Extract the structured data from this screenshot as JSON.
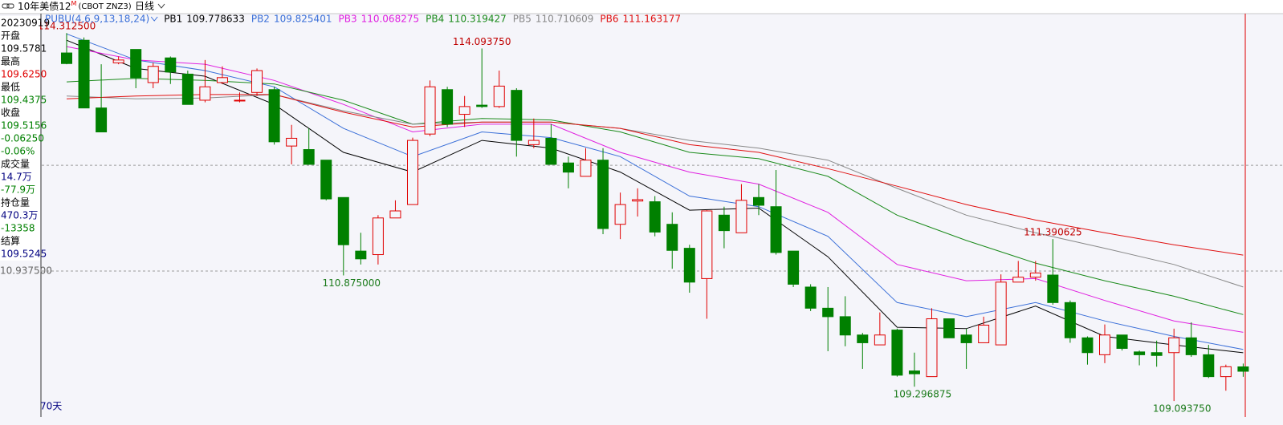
{
  "toolbar": {
    "symbol": "10年美债12",
    "symbol_sup": "M",
    "exchange": "(CBOT ZNZ3)",
    "period": "日线"
  },
  "info_panel": {
    "date": "20230919",
    "rows": [
      {
        "label": "开盘",
        "value": "109.5781",
        "color": "#000000"
      },
      {
        "label": "最高",
        "value": "109.6250",
        "color": "#e00000"
      },
      {
        "label": "最低",
        "value": "109.4375",
        "color": "#008000"
      },
      {
        "label": "收盘",
        "value": "109.5156",
        "color": "#008000"
      },
      {
        "value": "-0.06250",
        "color": "#008000"
      },
      {
        "value": "-0.06%",
        "color": "#008000"
      },
      {
        "label": "成交量",
        "value": "14.7万",
        "color": "#000080"
      },
      {
        "value": "-77.9万",
        "color": "#008000"
      },
      {
        "label": "持仓量",
        "value": "470.3万",
        "color": "#000080"
      },
      {
        "value": "-13358",
        "color": "#008000"
      },
      {
        "label": "结算",
        "value": "109.5245",
        "color": "#000080"
      }
    ]
  },
  "chart_data": {
    "type": "candlestick",
    "indicator": "PUBU(4,6,9,13,18,24)",
    "range_label": "70天",
    "ylim": [
      108.89,
      114.44
    ],
    "yticks": [
      {
        "value": 110.9375,
        "label": "10.937500"
      }
    ],
    "hlines": [
      112.4375
    ],
    "up_color": "#e00000",
    "down_color": "#008000",
    "candles": [
      {
        "open": 114.03,
        "high": 114.3125,
        "low": 113.87,
        "close": 113.88,
        "high_label": "114.312500"
      },
      {
        "open": 114.21,
        "high": 114.25,
        "low": 113.25,
        "close": 113.25
      },
      {
        "open": 113.25,
        "high": 113.87,
        "low": 112.91,
        "close": 112.91
      },
      {
        "open": 113.89,
        "high": 113.98,
        "low": 113.87,
        "close": 113.93
      },
      {
        "open": 114.08,
        "high": 114.08,
        "low": 113.53,
        "close": 113.68
      },
      {
        "open": 113.61,
        "high": 113.89,
        "low": 113.53,
        "close": 113.84
      },
      {
        "open": 113.96,
        "high": 113.98,
        "low": 113.59,
        "close": 113.76
      },
      {
        "open": 113.73,
        "high": 113.78,
        "low": 113.3,
        "close": 113.3
      },
      {
        "open": 113.36,
        "high": 113.93,
        "low": 113.33,
        "close": 113.55
      },
      {
        "open": 113.61,
        "high": 113.84,
        "low": 113.59,
        "close": 113.68
      },
      {
        "open": 113.36,
        "high": 113.47,
        "low": 113.33,
        "close": 113.36
      },
      {
        "open": 113.47,
        "high": 113.81,
        "low": 113.42,
        "close": 113.78
      },
      {
        "open": 113.51,
        "high": 113.55,
        "low": 112.73,
        "close": 112.77
      },
      {
        "open": 112.71,
        "high": 113.01,
        "low": 112.45,
        "close": 112.82
      },
      {
        "open": 112.66,
        "high": 112.96,
        "low": 112.45,
        "close": 112.45
      },
      {
        "open": 112.51,
        "high": 112.51,
        "low": 111.94,
        "close": 111.96
      },
      {
        "open": 111.98,
        "high": 111.98,
        "low": 110.875,
        "close": 111.31,
        "low_label": "110.875000"
      },
      {
        "open": 111.22,
        "high": 111.48,
        "low": 111.03,
        "close": 111.11
      },
      {
        "open": 111.17,
        "high": 111.73,
        "low": 111.03,
        "close": 111.69
      },
      {
        "open": 111.69,
        "high": 111.94,
        "low": 111.69,
        "close": 111.79
      },
      {
        "open": 111.88,
        "high": 112.83,
        "low": 111.88,
        "close": 112.79
      },
      {
        "open": 112.88,
        "high": 113.64,
        "low": 112.85,
        "close": 113.55
      },
      {
        "open": 113.51,
        "high": 113.55,
        "low": 112.98,
        "close": 113.02
      },
      {
        "open": 113.16,
        "high": 113.42,
        "low": 112.98,
        "close": 113.27
      },
      {
        "open": 113.29,
        "high": 114.09375,
        "low": 113.25,
        "close": 113.27,
        "high_label": "114.093750"
      },
      {
        "open": 113.27,
        "high": 113.78,
        "low": 113.25,
        "close": 113.56
      },
      {
        "open": 113.5,
        "high": 113.53,
        "low": 112.56,
        "close": 112.79
      },
      {
        "open": 112.73,
        "high": 113.1,
        "low": 112.68,
        "close": 112.79
      },
      {
        "open": 112.82,
        "high": 113.02,
        "low": 112.45,
        "close": 112.45
      },
      {
        "open": 112.47,
        "high": 112.56,
        "low": 112.11,
        "close": 112.34
      },
      {
        "open": 112.28,
        "high": 112.68,
        "low": 112.28,
        "close": 112.51
      },
      {
        "open": 112.51,
        "high": 112.68,
        "low": 111.46,
        "close": 111.54
      },
      {
        "open": 111.6,
        "high": 112.05,
        "low": 111.39,
        "close": 111.88
      },
      {
        "open": 111.93,
        "high": 112.11,
        "low": 111.71,
        "close": 111.95
      },
      {
        "open": 111.92,
        "high": 112.0,
        "low": 111.43,
        "close": 111.49
      },
      {
        "open": 111.6,
        "high": 111.77,
        "low": 110.97,
        "close": 111.23
      },
      {
        "open": 111.26,
        "high": 111.31,
        "low": 110.63,
        "close": 110.78
      },
      {
        "open": 110.83,
        "high": 111.8,
        "low": 110.26,
        "close": 111.79
      },
      {
        "open": 111.73,
        "high": 111.85,
        "low": 111.26,
        "close": 111.51
      },
      {
        "open": 111.48,
        "high": 112.17,
        "low": 111.48,
        "close": 111.94
      },
      {
        "open": 111.98,
        "high": 112.17,
        "low": 111.73,
        "close": 111.87
      },
      {
        "open": 111.85,
        "high": 112.37,
        "low": 111.17,
        "close": 111.2
      },
      {
        "open": 111.22,
        "high": 111.22,
        "low": 110.71,
        "close": 110.75
      },
      {
        "open": 110.71,
        "high": 110.75,
        "low": 110.37,
        "close": 110.41
      },
      {
        "open": 110.41,
        "high": 110.71,
        "low": 109.8,
        "close": 110.29
      },
      {
        "open": 110.29,
        "high": 110.58,
        "low": 109.87,
        "close": 110.03
      },
      {
        "open": 110.03,
        "high": 110.06,
        "low": 109.55,
        "close": 109.92
      },
      {
        "open": 109.89,
        "high": 110.35,
        "low": 109.89,
        "close": 110.03
      },
      {
        "open": 110.1,
        "high": 110.12,
        "low": 109.44,
        "close": 109.46
      },
      {
        "open": 109.52,
        "high": 109.78,
        "low": 109.296875,
        "close": 109.48,
        "low_label": "109.296875"
      },
      {
        "open": 109.44,
        "high": 110.41,
        "low": 109.44,
        "close": 110.26
      },
      {
        "open": 110.26,
        "high": 110.26,
        "low": 109.99,
        "close": 109.99
      },
      {
        "open": 110.03,
        "high": 110.12,
        "low": 109.55,
        "close": 109.92
      },
      {
        "open": 109.92,
        "high": 110.29,
        "low": 109.92,
        "close": 110.17
      },
      {
        "open": 109.89,
        "high": 110.89,
        "low": 109.89,
        "close": 110.78
      },
      {
        "open": 110.78,
        "high": 111.08,
        "low": 110.78,
        "close": 110.85
      },
      {
        "open": 110.85,
        "high": 111.08,
        "low": 110.8,
        "close": 110.91
      },
      {
        "open": 110.88,
        "high": 111.390625,
        "low": 110.46,
        "close": 110.49,
        "high_label": "111.390625"
      },
      {
        "open": 110.49,
        "high": 110.52,
        "low": 109.92,
        "close": 109.99
      },
      {
        "open": 109.99,
        "high": 110.01,
        "low": 109.61,
        "close": 109.78
      },
      {
        "open": 109.75,
        "high": 110.18,
        "low": 109.63,
        "close": 110.03
      },
      {
        "open": 110.03,
        "high": 110.03,
        "low": 109.81,
        "close": 109.84
      },
      {
        "open": 109.79,
        "high": 109.81,
        "low": 109.6,
        "close": 109.75
      },
      {
        "open": 109.78,
        "high": 109.95,
        "low": 109.58,
        "close": 109.74
      },
      {
        "open": 109.78,
        "high": 110.12,
        "low": 109.09375,
        "close": 109.99,
        "low_label": "109.093750"
      },
      {
        "open": 109.99,
        "high": 110.21,
        "low": 109.72,
        "close": 109.75
      },
      {
        "open": 109.75,
        "high": 109.89,
        "low": 109.42,
        "close": 109.44
      },
      {
        "open": 109.44,
        "high": 109.61,
        "low": 109.24,
        "close": 109.58
      },
      {
        "open": 109.578125,
        "high": 109.625,
        "low": 109.4375,
        "close": 109.515625
      }
    ],
    "x": [
      0,
      4,
      8,
      12,
      16,
      20,
      24,
      28,
      32,
      36,
      40,
      44,
      48,
      52,
      56,
      60,
      64,
      68
    ],
    "series": [
      {
        "name": "PB1",
        "color": "#000000",
        "values": [
          114.21,
          113.81,
          113.7,
          113.3,
          112.62,
          112.34,
          112.79,
          112.68,
          112.34,
          111.8,
          111.83,
          111.14,
          110.14,
          110.12,
          110.44,
          110.01,
          109.89,
          109.778633
        ]
      },
      {
        "name": "PB2",
        "color": "#3a6fd8",
        "values": [
          114.3,
          113.93,
          113.78,
          113.55,
          112.96,
          112.56,
          112.91,
          112.83,
          112.56,
          112.0,
          111.85,
          111.43,
          110.49,
          110.29,
          110.49,
          110.23,
          110.01,
          109.825401
        ]
      },
      {
        "name": "PB3",
        "color": "#e020e0",
        "values": [
          114.12,
          113.93,
          113.87,
          113.64,
          113.3,
          112.91,
          113.02,
          113.02,
          112.62,
          112.34,
          112.17,
          111.77,
          111.03,
          110.8,
          110.83,
          110.52,
          110.23,
          110.068275
        ]
      },
      {
        "name": "PB4",
        "color": "#1a8a1a",
        "values": [
          113.62,
          113.67,
          113.64,
          113.59,
          113.36,
          113.02,
          113.1,
          113.08,
          112.91,
          112.62,
          112.53,
          112.28,
          111.73,
          111.37,
          111.05,
          110.8,
          110.58,
          110.319427
        ]
      },
      {
        "name": "PB5",
        "color": "#888888",
        "values": [
          113.42,
          113.38,
          113.39,
          113.44,
          113.21,
          113.02,
          113.05,
          113.05,
          112.96,
          112.79,
          112.68,
          112.51,
          112.11,
          111.73,
          111.48,
          111.26,
          111.03,
          110.710609
        ]
      },
      {
        "name": "PB6",
        "color": "#e01010",
        "values": [
          113.38,
          113.42,
          113.44,
          113.44,
          113.19,
          112.98,
          113.05,
          113.05,
          112.96,
          112.73,
          112.62,
          112.39,
          112.14,
          111.88,
          111.66,
          111.48,
          111.31,
          111.163177
        ]
      }
    ]
  }
}
